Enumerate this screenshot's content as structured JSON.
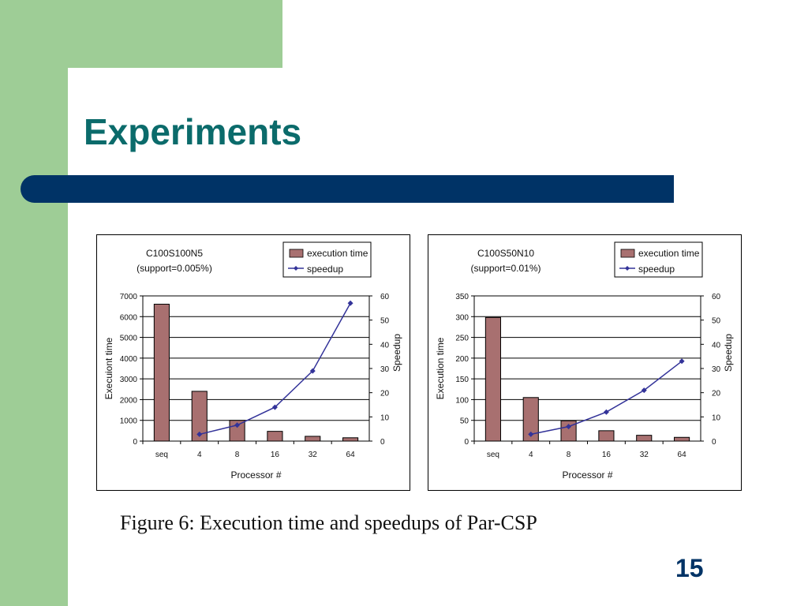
{
  "slide": {
    "title": "Experiments",
    "caption": "Figure 6: Execution time and speedups of Par-CSP",
    "page_number": "15"
  },
  "colors": {
    "background_green": "#9ecd96",
    "title_text": "#0b6b6b",
    "title_bar": "#003366",
    "bar_fill": "#a87070",
    "line": "#333399"
  },
  "chart_data": [
    {
      "type": "bar",
      "title": "C100S100N5",
      "subtitle": "(support=0.005%)",
      "xlabel": "Processor #",
      "ylabel": "Execuiont time",
      "y2label": "Speedup",
      "categories": [
        "seq",
        "4",
        "8",
        "16",
        "32",
        "64"
      ],
      "ylim": [
        0,
        7000
      ],
      "yticks": [
        "0",
        "1000",
        "2000",
        "3000",
        "4000",
        "5000",
        "6000",
        "7000"
      ],
      "y2lim": [
        0,
        60
      ],
      "y2ticks": [
        "0",
        "10",
        "20",
        "30",
        "40",
        "50",
        "60"
      ],
      "grid": true,
      "legend": [
        "execution time",
        "speedup"
      ],
      "legend_position": "top-right",
      "series": [
        {
          "name": "execution time",
          "type": "bar",
          "axis": "left",
          "values": [
            6600,
            2400,
            1000,
            470,
            230,
            160
          ]
        },
        {
          "name": "speedup",
          "type": "line",
          "axis": "right",
          "values": [
            null,
            2.8,
            6.6,
            14,
            29,
            57
          ]
        }
      ]
    },
    {
      "type": "bar",
      "title": "C100S50N10",
      "subtitle": "(support=0.01%)",
      "xlabel": "Processor #",
      "ylabel": "Execution time",
      "y2label": "Speedup",
      "categories": [
        "seq",
        "4",
        "8",
        "16",
        "32",
        "64"
      ],
      "ylim": [
        0,
        350
      ],
      "yticks": [
        "0",
        "50",
        "100",
        "150",
        "200",
        "250",
        "300",
        "350"
      ],
      "y2lim": [
        0,
        60
      ],
      "y2ticks": [
        "0",
        "10",
        "20",
        "30",
        "40",
        "50",
        "60"
      ],
      "grid": true,
      "legend": [
        "execution time",
        "speedup"
      ],
      "legend_position": "top-right",
      "series": [
        {
          "name": "execution time",
          "type": "bar",
          "axis": "left",
          "values": [
            298,
            105,
            49,
            25,
            14,
            9
          ]
        },
        {
          "name": "speedup",
          "type": "line",
          "axis": "right",
          "values": [
            null,
            2.8,
            6,
            12,
            21,
            33
          ]
        }
      ]
    }
  ]
}
